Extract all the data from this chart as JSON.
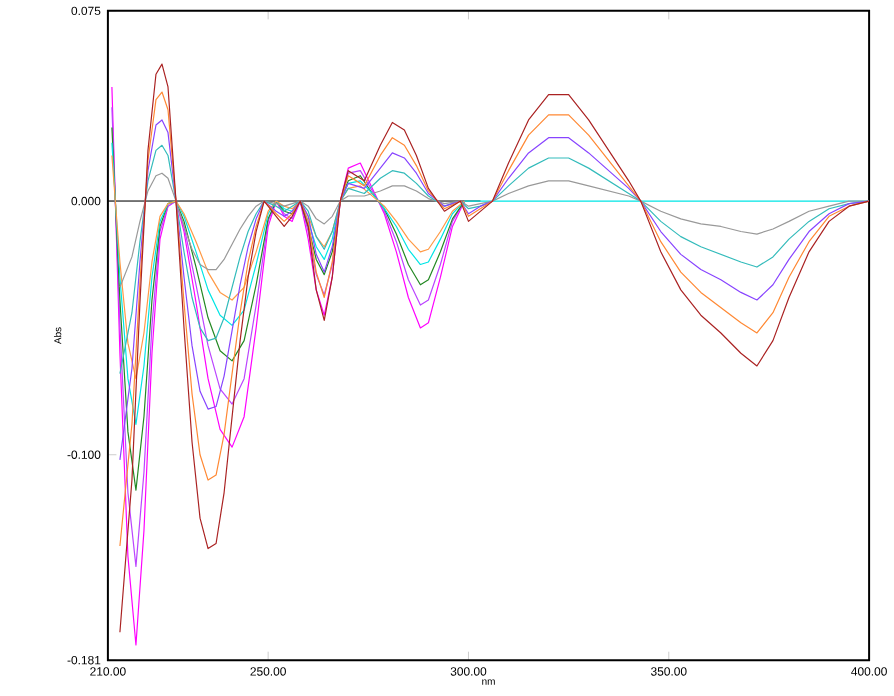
{
  "chart_data": {
    "type": "line",
    "xlabel": "nm",
    "ylabel": "Abs",
    "xlim": [
      210,
      400
    ],
    "ylim": [
      -0.181,
      0.075
    ],
    "xticks": [
      {
        "value": 210,
        "label": "210.00"
      },
      {
        "value": 250,
        "label": "250.00"
      },
      {
        "value": 300,
        "label": "300.00"
      },
      {
        "value": 350,
        "label": "350.00"
      },
      {
        "value": 400,
        "label": "400.00"
      }
    ],
    "yticks": [
      {
        "value": -0.181,
        "label": "-0.181"
      },
      {
        "value": -0.1,
        "label": "-0.100"
      },
      {
        "value": 0,
        "label": "0.000"
      },
      {
        "value": 0.075,
        "label": "0.075"
      }
    ],
    "grid": false,
    "series": [
      {
        "color": "#000000",
        "x": [
          210,
          303
        ],
        "values": [
          0,
          0
        ]
      },
      {
        "color": "#ff00ff",
        "x": [
          211,
          213,
          215,
          217,
          219,
          221,
          223,
          225,
          227,
          229,
          232,
          235,
          238,
          241,
          244,
          247,
          250,
          252,
          254,
          256,
          258,
          260,
          262,
          264,
          266,
          268,
          270,
          273,
          276,
          279,
          282,
          285,
          288,
          290,
          293,
          296,
          299
        ],
        "values": [
          0.045,
          -0.06,
          -0.14,
          -0.175,
          -0.13,
          -0.06,
          -0.015,
          -0.002,
          0,
          -0.012,
          -0.04,
          -0.07,
          -0.09,
          -0.097,
          -0.085,
          -0.05,
          -0.01,
          0,
          -0.006,
          -0.008,
          0,
          -0.015,
          -0.035,
          -0.045,
          -0.03,
          0,
          0.013,
          0.015,
          0.005,
          -0.005,
          -0.02,
          -0.038,
          -0.05,
          -0.048,
          -0.03,
          -0.01,
          0
        ]
      },
      {
        "color": "#bb44ff",
        "x": [
          211,
          213,
          215,
          217,
          219,
          221,
          223,
          225,
          227,
          229,
          232,
          235,
          238,
          241,
          244,
          247,
          250,
          252,
          254,
          256,
          258,
          260,
          262,
          264,
          266,
          268,
          270,
          273,
          276,
          279,
          282,
          285,
          288,
          290,
          293,
          296,
          299
        ],
        "values": [
          0.037,
          -0.049,
          -0.115,
          -0.144,
          -0.107,
          -0.049,
          -0.012,
          -0.002,
          0,
          -0.01,
          -0.033,
          -0.057,
          -0.074,
          -0.08,
          -0.07,
          -0.041,
          -0.008,
          0,
          -0.005,
          -0.007,
          0,
          -0.012,
          -0.029,
          -0.037,
          -0.025,
          0,
          0.011,
          0.012,
          0.004,
          -0.004,
          -0.016,
          -0.031,
          -0.041,
          -0.039,
          -0.025,
          -0.008,
          0
        ]
      },
      {
        "color": "#228822",
        "x": [
          211,
          213,
          215,
          217,
          219,
          221,
          223,
          225,
          227,
          229,
          232,
          235,
          238,
          241,
          244,
          247,
          250,
          252,
          254,
          256,
          258,
          260,
          262,
          264,
          266,
          268,
          270,
          273,
          276,
          279,
          282,
          285,
          288,
          290,
          293,
          296,
          299
        ],
        "values": [
          0.029,
          -0.039,
          -0.091,
          -0.114,
          -0.085,
          -0.039,
          -0.01,
          -0.001,
          0,
          -0.008,
          -0.026,
          -0.046,
          -0.059,
          -0.063,
          -0.055,
          -0.033,
          -0.007,
          0,
          -0.004,
          -0.005,
          0,
          -0.01,
          -0.023,
          -0.029,
          -0.02,
          0,
          0.008,
          0.01,
          0.003,
          -0.003,
          -0.013,
          -0.025,
          -0.033,
          -0.031,
          -0.02,
          -0.007,
          0
        ]
      },
      {
        "color": "#00e5e5",
        "x": [
          211,
          213,
          215,
          217,
          219,
          221,
          223,
          225,
          227,
          229,
          232,
          235,
          238,
          241,
          244,
          247,
          250,
          252,
          254,
          256,
          258,
          260,
          262,
          264,
          266,
          268,
          270,
          273,
          276,
          279,
          282,
          285,
          288,
          290,
          293,
          296,
          299,
          310,
          330,
          350,
          370,
          400
        ],
        "values": [
          0.023,
          -0.03,
          -0.07,
          -0.088,
          -0.065,
          -0.03,
          -0.008,
          -0.001,
          0,
          -0.006,
          -0.02,
          -0.035,
          -0.045,
          -0.049,
          -0.043,
          -0.025,
          -0.005,
          0,
          -0.003,
          -0.004,
          0,
          -0.008,
          -0.018,
          -0.023,
          -0.015,
          0,
          0.007,
          0.008,
          0.003,
          -0.003,
          -0.01,
          -0.019,
          -0.025,
          -0.024,
          -0.015,
          -0.005,
          0,
          0,
          0,
          0,
          0,
          0
        ]
      },
      {
        "color": "#ff9944",
        "x": [
          211,
          213,
          215,
          217,
          219,
          221,
          223,
          225,
          227,
          229,
          232,
          235,
          238,
          241,
          244,
          247,
          250,
          252,
          254,
          256,
          258,
          260,
          262,
          264,
          266,
          268,
          270,
          273,
          276,
          279,
          282,
          285,
          288,
          290,
          293,
          296,
          299
        ],
        "values": [
          0.018,
          -0.024,
          -0.056,
          -0.07,
          -0.052,
          -0.024,
          -0.006,
          -0.001,
          0,
          -0.005,
          -0.016,
          -0.028,
          -0.036,
          -0.039,
          -0.034,
          -0.02,
          -0.004,
          0,
          -0.002,
          -0.003,
          0,
          -0.006,
          -0.014,
          -0.018,
          -0.012,
          0,
          0.005,
          0.006,
          0.002,
          -0.002,
          -0.008,
          -0.015,
          -0.02,
          -0.019,
          -0.012,
          -0.004,
          0
        ]
      },
      {
        "color": "#999999",
        "x": [
          213,
          216,
          218,
          220,
          222,
          223.5,
          225,
          227,
          229,
          231,
          233,
          235,
          237,
          239,
          241,
          243,
          245,
          247,
          249,
          252,
          254,
          256,
          258,
          260,
          262,
          264,
          266,
          268,
          270,
          274,
          278,
          281,
          284,
          287,
          290,
          294,
          298,
          300,
          303,
          306,
          310,
          315,
          320,
          325,
          330,
          335,
          340,
          343,
          348,
          353,
          358,
          363,
          368,
          372,
          376,
          380,
          385,
          390,
          395,
          400
        ],
        "values": [
          -0.034,
          -0.022,
          -0.008,
          0.004,
          0.01,
          0.011,
          0.009,
          0,
          -0.01,
          -0.019,
          -0.025,
          -0.027,
          -0.027,
          -0.023,
          -0.017,
          -0.011,
          -0.006,
          -0.002,
          0,
          -0.001,
          -0.002,
          -0.001,
          0,
          -0.002,
          -0.007,
          -0.009,
          -0.006,
          0,
          0.002,
          0.002,
          0.004,
          0.006,
          0.006,
          0.004,
          0.001,
          -0.001,
          0,
          -0.002,
          -0.001,
          0,
          0.003,
          0.006,
          0.008,
          0.008,
          0.006,
          0.004,
          0.002,
          0,
          -0.004,
          -0.007,
          -0.009,
          -0.01,
          -0.012,
          -0.013,
          -0.011,
          -0.008,
          -0.004,
          -0.002,
          0,
          0
        ]
      },
      {
        "color": "#33bbbb",
        "x": [
          213,
          216,
          218,
          220,
          222,
          223.5,
          225,
          227,
          229,
          231,
          233,
          235,
          237,
          239,
          241,
          243,
          245,
          247,
          249,
          252,
          254,
          256,
          258,
          260,
          262,
          264,
          266,
          268,
          270,
          274,
          278,
          281,
          284,
          287,
          290,
          294,
          298,
          300,
          303,
          306,
          310,
          315,
          320,
          325,
          330,
          335,
          340,
          343,
          348,
          353,
          358,
          363,
          368,
          372,
          376,
          380,
          385,
          390,
          395,
          400
        ],
        "values": [
          -0.068,
          -0.044,
          -0.016,
          0.008,
          0.02,
          0.022,
          0.018,
          0,
          -0.02,
          -0.038,
          -0.05,
          -0.055,
          -0.054,
          -0.046,
          -0.034,
          -0.022,
          -0.012,
          -0.005,
          0,
          -0.002,
          -0.004,
          -0.002,
          0,
          -0.004,
          -0.014,
          -0.019,
          -0.012,
          0,
          0.005,
          0.003,
          0.009,
          0.012,
          0.011,
          0.007,
          0.002,
          -0.002,
          0,
          -0.003,
          -0.002,
          0,
          0.006,
          0.013,
          0.017,
          0.017,
          0.013,
          0.008,
          0.003,
          0,
          -0.008,
          -0.014,
          -0.018,
          -0.021,
          -0.024,
          -0.026,
          -0.022,
          -0.015,
          -0.008,
          -0.003,
          -0.001,
          0
        ]
      },
      {
        "color": "#8844ff",
        "x": [
          213,
          216,
          218,
          220,
          222,
          223.5,
          225,
          227,
          229,
          231,
          233,
          235,
          237,
          239,
          241,
          243,
          245,
          247,
          249,
          252,
          254,
          256,
          258,
          260,
          262,
          264,
          266,
          268,
          270,
          274,
          278,
          281,
          284,
          287,
          290,
          294,
          298,
          300,
          303,
          306,
          310,
          315,
          320,
          325,
          330,
          335,
          340,
          343,
          348,
          353,
          358,
          363,
          368,
          372,
          376,
          380,
          385,
          390,
          395,
          400
        ],
        "values": [
          -0.102,
          -0.066,
          -0.024,
          0.012,
          0.03,
          0.032,
          0.027,
          0,
          -0.03,
          -0.057,
          -0.075,
          -0.082,
          -0.081,
          -0.069,
          -0.051,
          -0.033,
          -0.018,
          -0.007,
          0,
          -0.004,
          -0.006,
          -0.004,
          0,
          -0.006,
          -0.021,
          -0.028,
          -0.018,
          0,
          0.007,
          0.005,
          0.013,
          0.019,
          0.017,
          0.011,
          0.003,
          -0.002,
          0,
          -0.005,
          -0.002,
          0,
          0.009,
          0.019,
          0.025,
          0.025,
          0.019,
          0.012,
          0.005,
          0,
          -0.012,
          -0.021,
          -0.027,
          -0.031,
          -0.036,
          -0.039,
          -0.033,
          -0.023,
          -0.012,
          -0.005,
          -0.001,
          0
        ]
      },
      {
        "color": "#ff8833",
        "x": [
          213,
          216,
          218,
          220,
          222,
          223.5,
          225,
          227,
          229,
          231,
          233,
          235,
          237,
          239,
          241,
          243,
          245,
          247,
          249,
          252,
          254,
          256,
          258,
          260,
          262,
          264,
          266,
          268,
          270,
          274,
          278,
          281,
          284,
          287,
          290,
          294,
          298,
          300,
          303,
          306,
          310,
          315,
          320,
          325,
          330,
          335,
          340,
          343,
          348,
          353,
          358,
          363,
          368,
          372,
          376,
          380,
          385,
          390,
          395,
          400
        ],
        "values": [
          -0.136,
          -0.088,
          -0.032,
          0.016,
          0.04,
          0.043,
          0.036,
          0,
          -0.04,
          -0.076,
          -0.1,
          -0.11,
          -0.108,
          -0.092,
          -0.068,
          -0.044,
          -0.024,
          -0.01,
          0,
          -0.005,
          -0.008,
          -0.005,
          0,
          -0.008,
          -0.028,
          -0.038,
          -0.024,
          0,
          0.01,
          0.006,
          0.018,
          0.025,
          0.022,
          0.014,
          0.004,
          -0.003,
          0,
          -0.006,
          -0.003,
          0,
          0.012,
          0.026,
          0.034,
          0.034,
          0.026,
          0.016,
          0.006,
          0,
          -0.016,
          -0.028,
          -0.036,
          -0.042,
          -0.048,
          -0.052,
          -0.044,
          -0.03,
          -0.016,
          -0.006,
          -0.002,
          0
        ]
      },
      {
        "color": "#aa2222",
        "x": [
          213,
          216,
          218,
          220,
          222,
          223.5,
          225,
          227,
          229,
          231,
          233,
          235,
          237,
          239,
          241,
          243,
          245,
          247,
          249,
          252,
          254,
          256,
          258,
          260,
          262,
          264,
          266,
          268,
          270,
          274,
          278,
          281,
          284,
          287,
          290,
          294,
          298,
          300,
          303,
          306,
          310,
          315,
          320,
          325,
          330,
          335,
          340,
          343,
          348,
          353,
          358,
          363,
          368,
          372,
          376,
          380,
          385,
          390,
          395,
          400
        ],
        "values": [
          -0.17,
          -0.11,
          -0.04,
          0.02,
          0.05,
          0.054,
          0.045,
          0,
          -0.05,
          -0.095,
          -0.125,
          -0.137,
          -0.135,
          -0.115,
          -0.085,
          -0.055,
          -0.03,
          -0.012,
          0,
          -0.006,
          -0.01,
          -0.006,
          0,
          -0.01,
          -0.035,
          -0.047,
          -0.03,
          0,
          0.012,
          0.008,
          0.022,
          0.031,
          0.028,
          0.018,
          0.005,
          -0.004,
          0,
          -0.008,
          -0.004,
          0,
          0.015,
          0.032,
          0.042,
          0.042,
          0.032,
          0.02,
          0.008,
          0,
          -0.02,
          -0.035,
          -0.045,
          -0.052,
          -0.06,
          -0.065,
          -0.055,
          -0.038,
          -0.02,
          -0.008,
          -0.002,
          0
        ]
      }
    ]
  }
}
